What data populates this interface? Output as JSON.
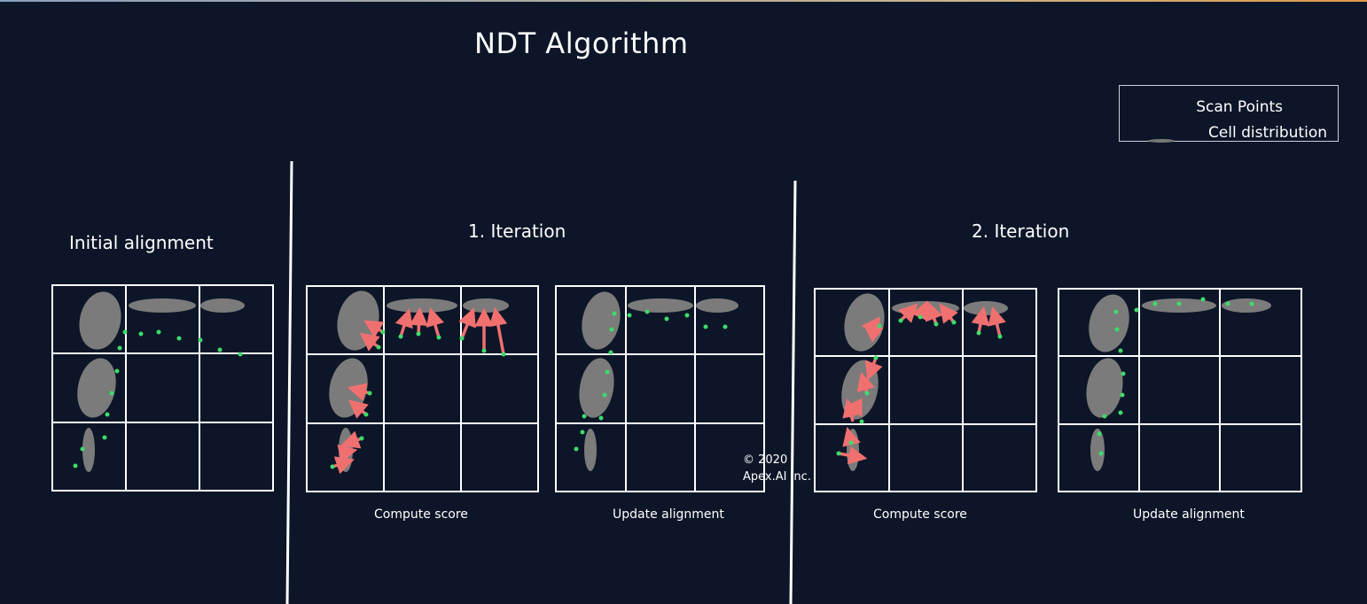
{
  "title": "NDT Algorithm",
  "legend": {
    "scan_points": "Scan Points",
    "cell_distribution": "Cell distribution"
  },
  "sections": {
    "initial": "Initial alignment",
    "iteration1": "1.   Iteration",
    "iteration2": "2. Iteration"
  },
  "captions": {
    "compute_score_1": "Compute score",
    "update_alignment_1": "Update alignment",
    "compute_score_2": "Compute score",
    "update_alignment_2": "Update alignment"
  },
  "copyright": {
    "year": "© 2020",
    "company": "Apex.AI Inc."
  },
  "colors": {
    "background": "#0d1628",
    "grid": "#ffffff",
    "cell_distribution": "#7b7b7b",
    "scan_point": "#3ddc6a",
    "score_arrow": "#f07070"
  }
}
